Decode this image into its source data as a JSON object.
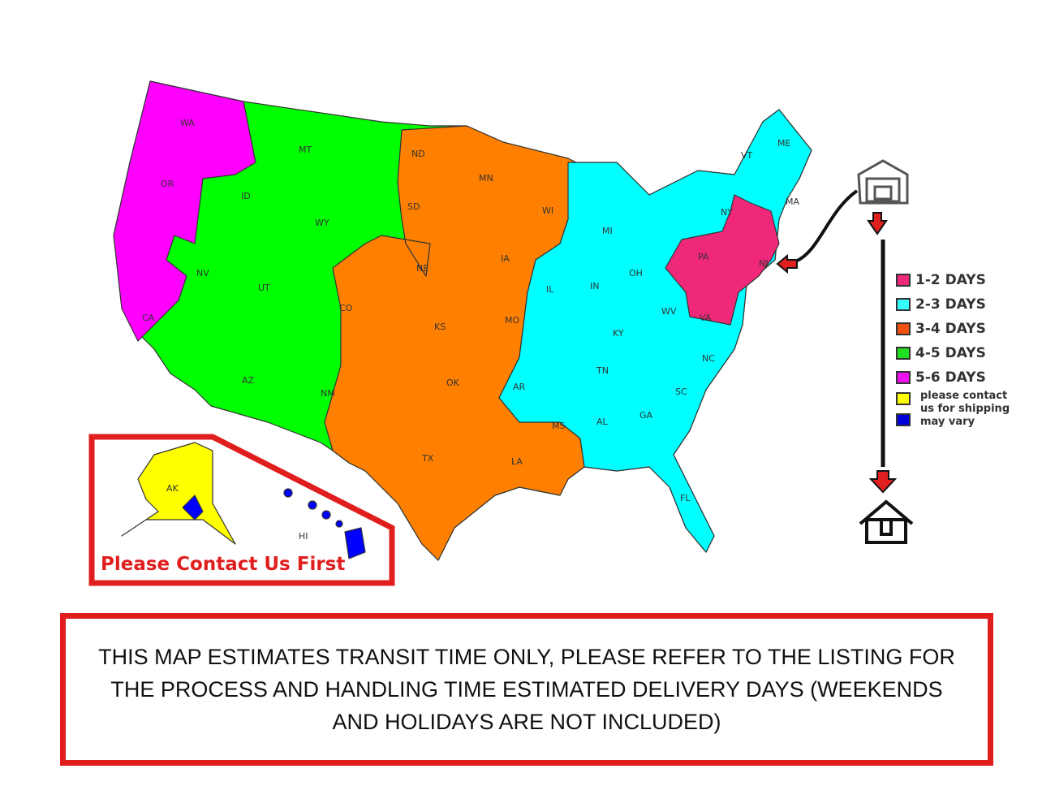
{
  "colors": {
    "1_2_days": "#f0287a",
    "2_3_days": "#00ffff",
    "3_4_days": "#ff8000",
    "4_5_days": "#00ff00",
    "5_6_days": "#ff00ff",
    "contact": "#ffff00",
    "may_vary": "#0000ff",
    "border": "#e01e1e"
  },
  "icons": [
    "warehouse-icon",
    "down-arrow-icon",
    "left-arrow-icon",
    "house-icon"
  ],
  "states": {
    "WA": "WA",
    "OR": "OR",
    "CA": "CA",
    "NV": "NV",
    "ID": "ID",
    "MT": "MT",
    "WY": "WY",
    "UT": "UT",
    "AZ": "AZ",
    "NM": "NM",
    "CO": "CO",
    "ND": "ND",
    "SD": "SD",
    "NE": "NE",
    "KS": "KS",
    "OK": "OK",
    "TX": "TX",
    "MN": "MN",
    "IA": "IA",
    "MO": "MO",
    "AR": "AR",
    "LA": "LA",
    "WI": "WI",
    "IL": "IL",
    "MI": "MI",
    "IN": "IN",
    "OH": "OH",
    "KY": "KY",
    "TN": "TN",
    "MS": "MS",
    "AL": "AL",
    "GA": "GA",
    "FL": "FL",
    "SC": "SC",
    "NC": "NC",
    "VA": "VA",
    "WV": "WV",
    "PA": "PA",
    "NY": "NY",
    "VT": "VT",
    "ME": "ME",
    "MA": "MA",
    "NJ": "NJ",
    "AK": "AK",
    "HI": "HI"
  },
  "legend": [
    {
      "label": "1-2 DAYS",
      "color": "#f0287a"
    },
    {
      "label": "2-3 DAYS",
      "color": "#33ffff"
    },
    {
      "label": "3-4 DAYS",
      "color": "#f05010"
    },
    {
      "label": "4-5 DAYS",
      "color": "#20e020"
    },
    {
      "label": "5-6 DAYS",
      "color": "#ee10ee"
    },
    {
      "label": "please contact",
      "color": "#ffff00"
    },
    {
      "label": "us for shipping",
      "color": "#0000dd"
    },
    {
      "label": "may vary"
    }
  ],
  "inset_label": "Please Contact Us First",
  "notice": "THIS MAP ESTIMATES TRANSIT TIME ONLY, PLEASE REFER TO THE LISTING FOR THE PROCESS AND HANDLING TIME ESTIMATED DELIVERY DAYS (WEEKENDS AND HOLIDAYS ARE NOT INCLUDED)"
}
